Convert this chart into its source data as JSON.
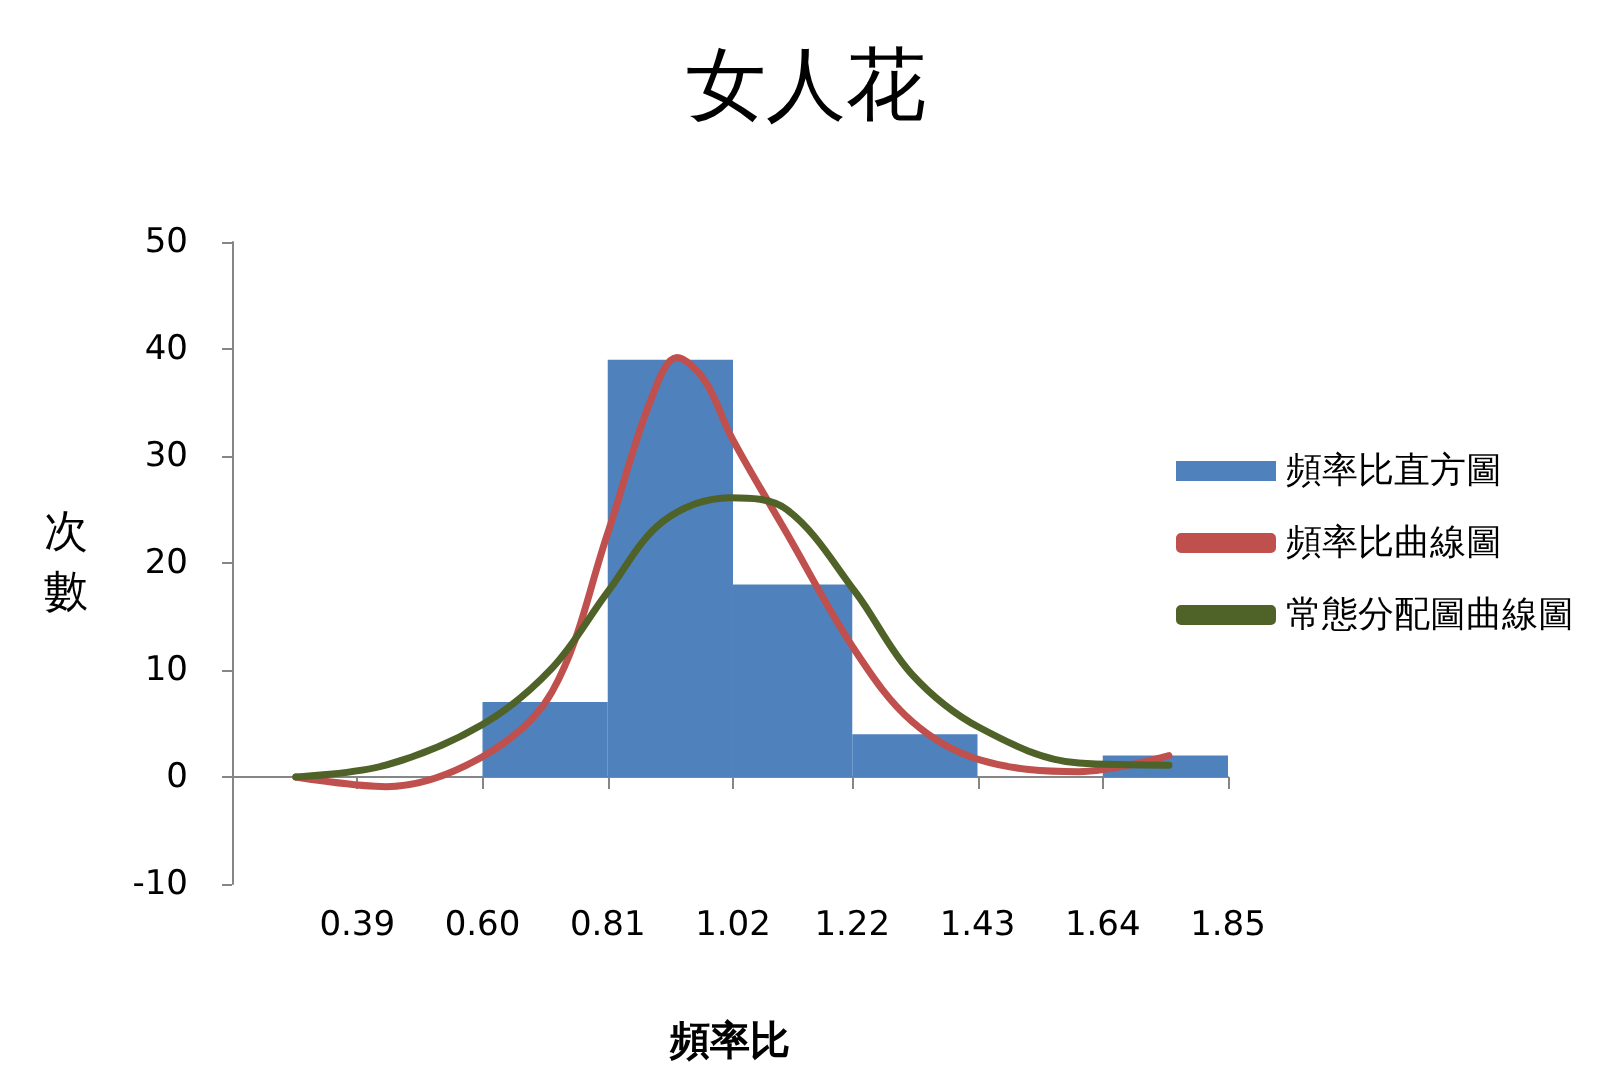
{
  "chart_data": {
    "type": "histogram",
    "title": "女人花",
    "xlabel": "頻率比",
    "ylabel": "次數",
    "bins": [
      0.6,
      0.81,
      1.02,
      1.22,
      1.43,
      1.64,
      1.85
    ],
    "series": [
      {
        "name": "頻率比直方圖",
        "color": "#4f81bd",
        "values": [
          7,
          39,
          18,
          4,
          0,
          2
        ]
      },
      {
        "type": "line",
        "name": "頻率比曲線圖",
        "color": "#c0504d",
        "x": [
          0.287,
          0.438,
          0.6,
          0.717,
          0.81,
          0.88,
          0.926,
          0.972,
          1.019,
          1.11,
          1.225,
          1.32,
          1.434,
          1.6,
          1.751
        ],
        "values": [
          0,
          -0.9,
          1.9,
          8.0,
          22.8,
          34.9,
          39.2,
          37.1,
          31.6,
          22.8,
          11.8,
          5.2,
          1.6,
          0.5,
          2.0
        ]
      },
      {
        "type": "line",
        "name": "常態分配圖曲線圖",
        "color": "#4f6228",
        "x": [
          0.287,
          0.438,
          0.6,
          0.717,
          0.81,
          0.903,
          1.015,
          1.11,
          1.225,
          1.32,
          1.434,
          1.6,
          1.751
        ],
        "values": [
          0,
          1.1,
          4.9,
          10.2,
          17.3,
          23.9,
          26.1,
          25.0,
          17.3,
          9.6,
          4.6,
          1.3,
          1.1
        ]
      }
    ],
    "xlim": [
      0.18,
      1.85
    ],
    "xticks": [
      0.39,
      {
        "value": 0.6,
        "label": "0.60"
      },
      0.81,
      1.02,
      1.22,
      1.43,
      1.64,
      1.85
    ],
    "ylim": [
      -10,
      50
    ],
    "yticks": [
      -10,
      0,
      10,
      20,
      30,
      40,
      50
    ],
    "legend": "right",
    "marker": "none",
    "line_style": "solid"
  }
}
